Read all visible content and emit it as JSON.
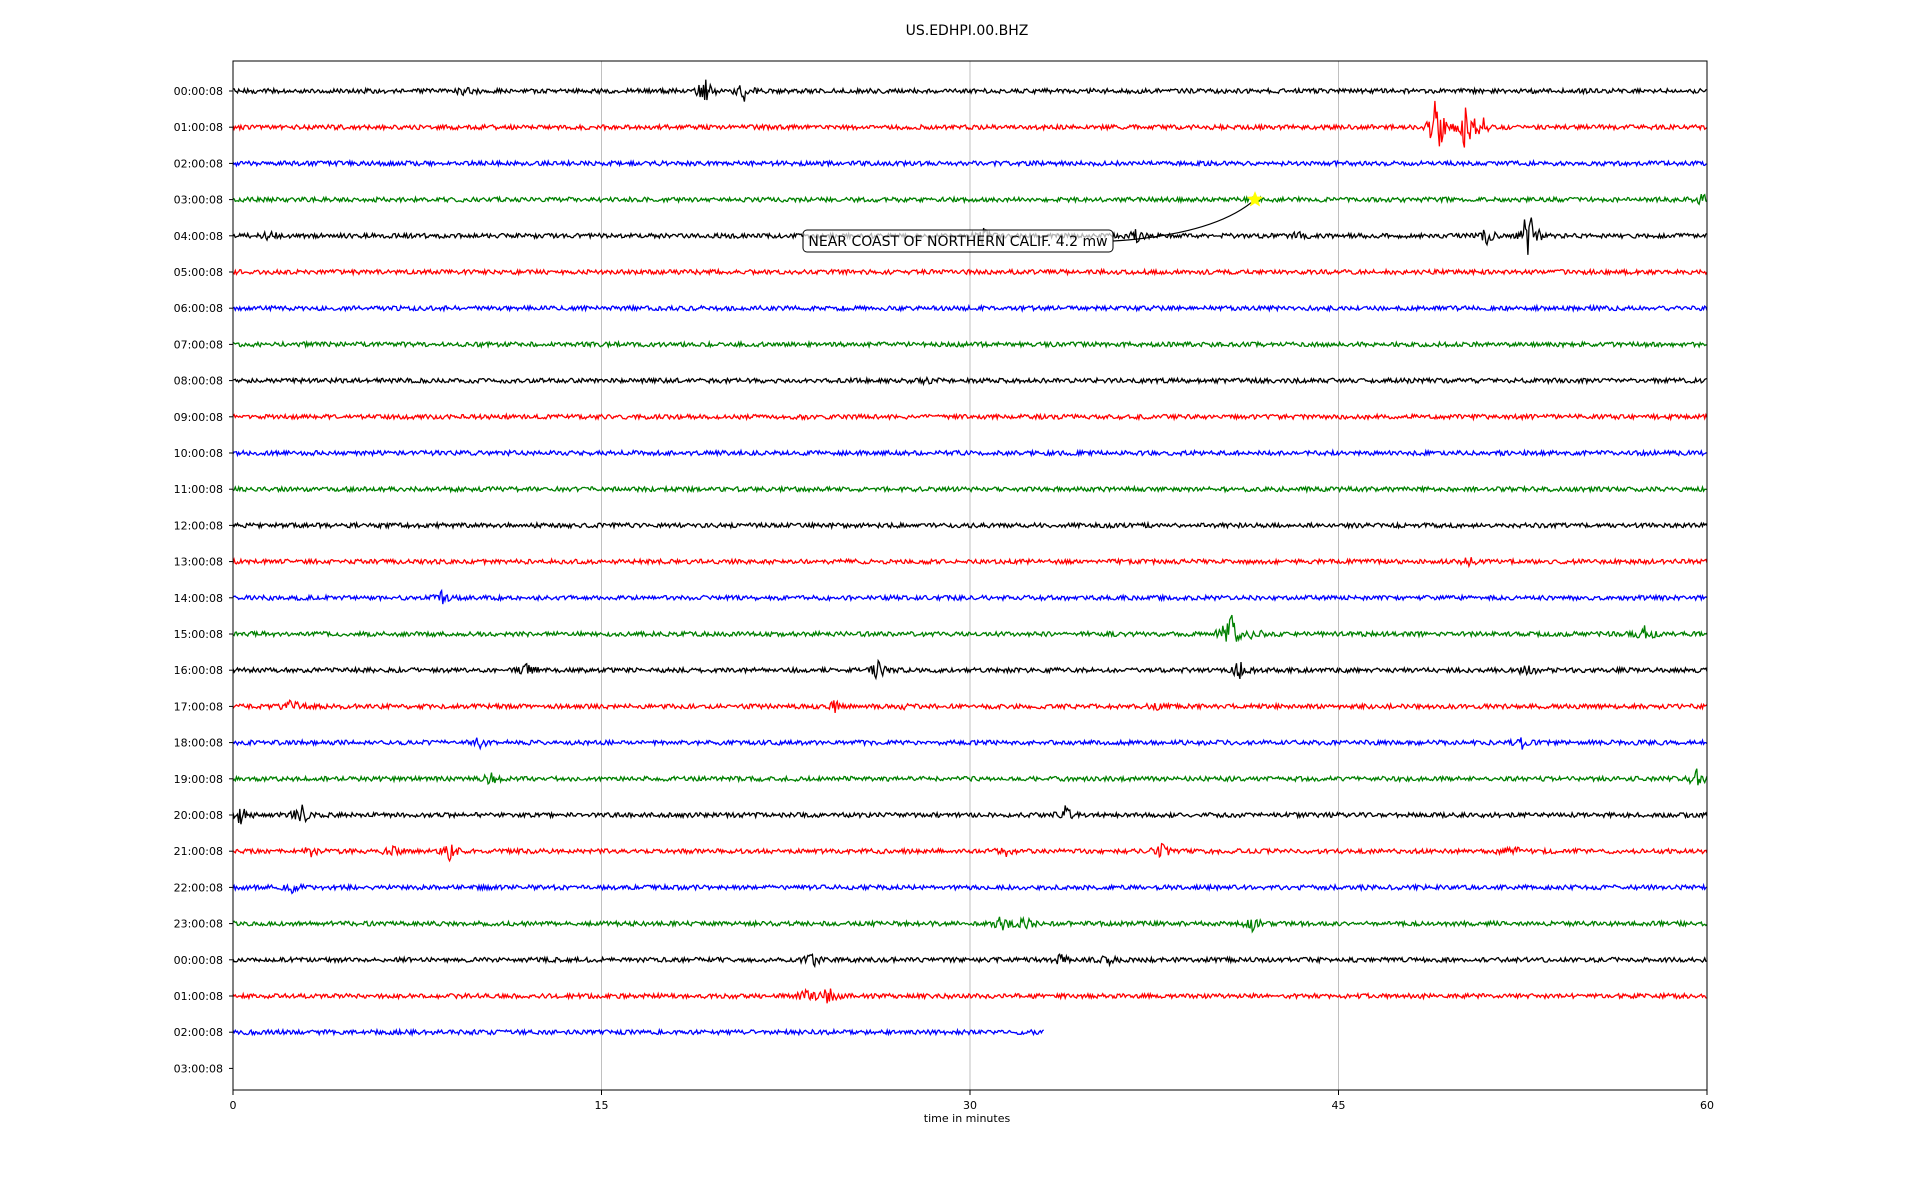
{
  "chart_data": {
    "type": "line",
    "title": "US.EDHPI.00.BHZ",
    "xlabel": "time in minutes",
    "ylabel": "",
    "xlim": [
      0,
      60
    ],
    "xticks": [
      0,
      15,
      30,
      45,
      60
    ],
    "grid_x": true,
    "series_colors": [
      "#000000",
      "#ff0000",
      "#0000ff",
      "#008000"
    ],
    "row_labels": [
      "00:00:08",
      "01:00:08",
      "02:00:08",
      "03:00:08",
      "04:00:08",
      "05:00:08",
      "06:00:08",
      "07:00:08",
      "08:00:08",
      "09:00:08",
      "10:00:08",
      "11:00:08",
      "12:00:08",
      "13:00:08",
      "14:00:08",
      "15:00:08",
      "16:00:08",
      "17:00:08",
      "18:00:08",
      "19:00:08",
      "20:00:08",
      "21:00:08",
      "22:00:08",
      "23:00:08",
      "00:00:08",
      "01:00:08",
      "02:00:08",
      "03:00:08"
    ],
    "last_trace_end_minute": 33,
    "bursts": [
      {
        "row": 0,
        "minute": 19.2,
        "amplitude": 3.0
      },
      {
        "row": 0,
        "minute": 20.8,
        "amplitude": 2.2
      },
      {
        "row": 0,
        "minute": 9.5,
        "amplitude": 1.2
      },
      {
        "row": 1,
        "minute": 49.0,
        "amplitude": 9.0
      },
      {
        "row": 1,
        "minute": 50.2,
        "amplitude": 6.5
      },
      {
        "row": 1,
        "minute": 50.9,
        "amplitude": 2.0
      },
      {
        "row": 3,
        "minute": 59.8,
        "amplitude": 1.5
      },
      {
        "row": 4,
        "minute": 1.5,
        "amplitude": 1.2
      },
      {
        "row": 4,
        "minute": 30.5,
        "amplitude": 2.0
      },
      {
        "row": 4,
        "minute": 36.8,
        "amplitude": 1.5
      },
      {
        "row": 4,
        "minute": 43.3,
        "amplitude": 1.3
      },
      {
        "row": 4,
        "minute": 51.0,
        "amplitude": 2.0
      },
      {
        "row": 4,
        "minute": 52.7,
        "amplitude": 9.5
      },
      {
        "row": 8,
        "minute": 28.2,
        "amplitude": 1.0
      },
      {
        "row": 13,
        "minute": 50.3,
        "amplitude": 1.0
      },
      {
        "row": 14,
        "minute": 8.5,
        "amplitude": 1.2
      },
      {
        "row": 15,
        "minute": 40.6,
        "amplitude": 7.0
      },
      {
        "row": 15,
        "minute": 41.6,
        "amplitude": 1.6
      },
      {
        "row": 15,
        "minute": 57.5,
        "amplitude": 2.0
      },
      {
        "row": 16,
        "minute": 12.0,
        "amplitude": 1.5
      },
      {
        "row": 16,
        "minute": 26.2,
        "amplitude": 2.5
      },
      {
        "row": 16,
        "minute": 41.0,
        "amplitude": 2.5
      },
      {
        "row": 16,
        "minute": 52.7,
        "amplitude": 1.5
      },
      {
        "row": 17,
        "minute": 2.4,
        "amplitude": 2.0
      },
      {
        "row": 17,
        "minute": 24.5,
        "amplitude": 1.2
      },
      {
        "row": 17,
        "minute": 27.5,
        "amplitude": 1.0
      },
      {
        "row": 17,
        "minute": 37.5,
        "amplitude": 0.9
      },
      {
        "row": 18,
        "minute": 10.0,
        "amplitude": 1.2
      },
      {
        "row": 18,
        "minute": 52.5,
        "amplitude": 1.3
      },
      {
        "row": 19,
        "minute": 10.5,
        "amplitude": 1.2
      },
      {
        "row": 19,
        "minute": 59.6,
        "amplitude": 2.2
      },
      {
        "row": 20,
        "minute": 0.3,
        "amplitude": 2.0
      },
      {
        "row": 20,
        "minute": 2.8,
        "amplitude": 2.5
      },
      {
        "row": 20,
        "minute": 33.9,
        "amplitude": 2.5
      },
      {
        "row": 21,
        "minute": 3.2,
        "amplitude": 1.4
      },
      {
        "row": 21,
        "minute": 6.5,
        "amplitude": 1.6
      },
      {
        "row": 21,
        "minute": 8.8,
        "amplitude": 2.0
      },
      {
        "row": 21,
        "minute": 31.5,
        "amplitude": 1.4
      },
      {
        "row": 21,
        "minute": 37.8,
        "amplitude": 2.0
      },
      {
        "row": 21,
        "minute": 52.0,
        "amplitude": 2.2
      },
      {
        "row": 22,
        "minute": 2.4,
        "amplitude": 1.0
      },
      {
        "row": 23,
        "minute": 31.3,
        "amplitude": 1.8
      },
      {
        "row": 23,
        "minute": 32.3,
        "amplitude": 1.8
      },
      {
        "row": 23,
        "minute": 41.5,
        "amplitude": 1.5
      },
      {
        "row": 24,
        "minute": 23.6,
        "amplitude": 1.5
      },
      {
        "row": 24,
        "minute": 33.6,
        "amplitude": 1.8
      },
      {
        "row": 24,
        "minute": 35.6,
        "amplitude": 1.3
      },
      {
        "row": 25,
        "minute": 23.3,
        "amplitude": 1.2
      },
      {
        "row": 25,
        "minute": 24.2,
        "amplitude": 2.5
      }
    ],
    "annotations": [
      {
        "text": "NEAR COAST OF NORTHERN CALIF. 4.2 mw",
        "row": 3,
        "minute": 41.6,
        "marker": "star",
        "marker_color": "#ffff00"
      }
    ]
  }
}
